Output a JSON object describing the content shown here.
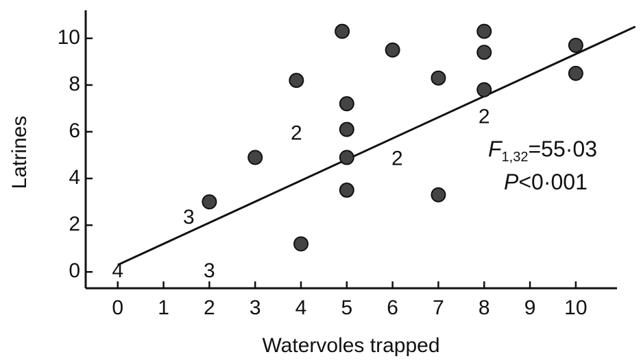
{
  "chart_data": {
    "type": "scatter",
    "x_label": "Watervoles trapped",
    "y_label": "Latrines",
    "xlim": [
      -0.7,
      10.9
    ],
    "ylim": [
      -0.7,
      11.2
    ],
    "xticks": [
      0,
      1,
      2,
      3,
      4,
      5,
      6,
      7,
      8,
      9,
      10
    ],
    "yticks": [
      0,
      2,
      4,
      6,
      8,
      10
    ],
    "color": "#444444",
    "series": [
      {
        "x": [
          2,
          3,
          3.9,
          4,
          4.9,
          5,
          5,
          5,
          5,
          6,
          7,
          7,
          8,
          8,
          8,
          10,
          10
        ],
        "values": [
          3,
          4.9,
          8.2,
          1.2,
          10.3,
          7.2,
          6.1,
          4.9,
          3.5,
          9.5,
          8.3,
          3.3,
          10.3,
          9.4,
          7.8,
          9.7,
          8.5
        ]
      }
    ],
    "trendline": {
      "x": [
        0,
        11.3
      ],
      "y": [
        0.3,
        10.5
      ]
    },
    "annotations": [
      {
        "text": "4",
        "x": 0,
        "y": 0
      },
      {
        "text": "3",
        "x": 2,
        "y": 0
      },
      {
        "text": "3",
        "x": 1.55,
        "y": 2.3
      },
      {
        "text": "2",
        "x": 3.9,
        "y": 5.9
      },
      {
        "text": "2",
        "x": 6.1,
        "y": 4.8
      },
      {
        "text": "2",
        "x": 8,
        "y": 6.6
      }
    ],
    "stats": {
      "f_symbol": "F",
      "f_subscript": "1,32",
      "f_value": "=55·03",
      "p_symbol": "P",
      "p_value": "<0·001"
    }
  }
}
